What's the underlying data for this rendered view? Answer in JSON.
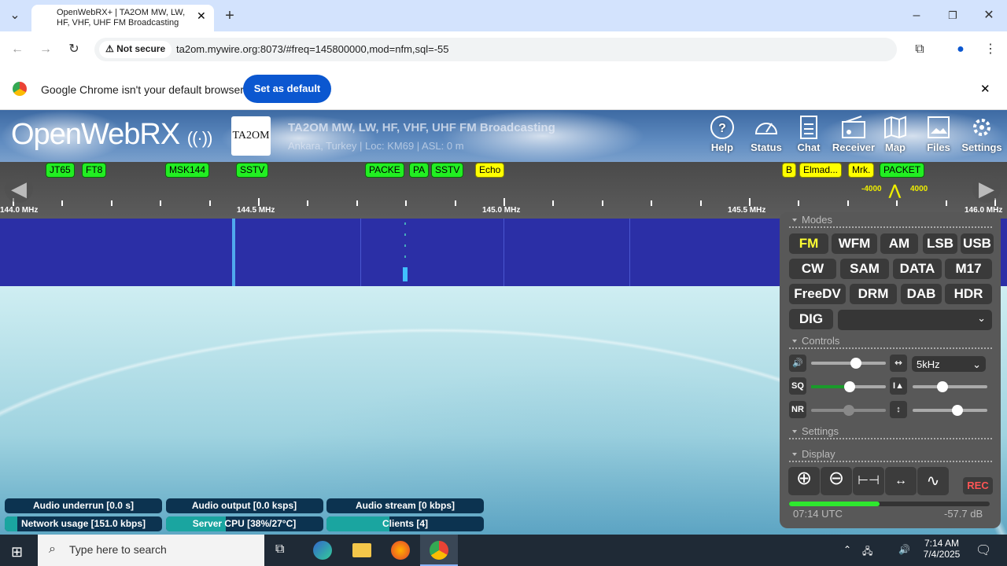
{
  "browser": {
    "tab_title": "OpenWebRX+ | TA2OM MW, LW, HF, VHF, UHF FM Broadcasting",
    "new_tab": "+",
    "not_secure": "Not secure",
    "url": "ta2om.mywire.org:8073/#freq=145800000,mod=nfm,sql=-55",
    "infobar_text": "Google Chrome isn't your default browser",
    "set_default": "Set as default"
  },
  "header": {
    "logo": "OpenWebRX",
    "receiver_logo": "TA2OM",
    "title": "TA2OM MW, LW, HF, VHF, UHF FM Broadcasting",
    "subtitle": "Ankara, Turkey | Loc: KM69 | ASL: 0 m",
    "nav": [
      {
        "label": "Help",
        "icon": "help-icon"
      },
      {
        "label": "Status",
        "icon": "gauge-icon"
      },
      {
        "label": "Chat",
        "icon": "chat-icon"
      },
      {
        "label": "Receiver",
        "icon": "radio-icon"
      },
      {
        "label": "Map",
        "icon": "map-icon"
      },
      {
        "label": "Files",
        "icon": "image-icon"
      },
      {
        "label": "Settings",
        "icon": "gear-icon"
      }
    ]
  },
  "bookmarks": [
    {
      "label": "JT65",
      "color": "green"
    },
    {
      "label": "FT8",
      "color": "green"
    },
    {
      "label": "MSK144",
      "color": "green"
    },
    {
      "label": "SSTV",
      "color": "green"
    },
    {
      "label": "PACKE",
      "color": "green"
    },
    {
      "label": "PA",
      "color": "green"
    },
    {
      "label": "SSTV",
      "color": "green"
    },
    {
      "label": "Echo",
      "color": "yellow"
    },
    {
      "label": "B",
      "color": "yellow"
    },
    {
      "label": "Elmad...",
      "color": "yellow"
    },
    {
      "label": "Mrk.",
      "color": "yellow"
    },
    {
      "label": "PACKET",
      "color": "green"
    }
  ],
  "scale": {
    "labels": [
      "144.0 MHz",
      "144.5 MHz",
      "145.0 MHz",
      "145.5 MHz",
      "146.0 MHz"
    ],
    "passband_low": "-4000",
    "passband_high": "4000"
  },
  "panel": {
    "modes_title": "Modes",
    "modes": [
      "FM",
      "WFM",
      "AM",
      "LSB",
      "USB",
      "CW",
      "SAM",
      "DATA",
      "M17",
      "FreeDV",
      "DRM",
      "DAB",
      "HDR",
      "DIG"
    ],
    "selected_mode": "FM",
    "digital_select": "",
    "controls_title": "Controls",
    "bandwidth": "5kHz",
    "sq_label": "SQ",
    "nr_label": "NR",
    "volume": 0.6,
    "squelch": 0.52,
    "nr": 0.5,
    "waterfall_min": 0.4,
    "waterfall_max": 0.6,
    "settings_title": "Settings",
    "display_title": "Display",
    "rec": "REC",
    "time": "07:14 UTC",
    "level": "-57.7 dB",
    "smeter": 0.45
  },
  "status": [
    {
      "label": "Audio underrun [0.0 s]",
      "fill": 0
    },
    {
      "label": "Audio output [0.0 ksps]",
      "fill": 0
    },
    {
      "label": "Audio stream [0 kbps]",
      "fill": 0
    },
    {
      "label": "Network usage [151.0 kbps]",
      "fill": 0.08
    },
    {
      "label": "Server CPU [38%/27°C]",
      "fill": 0.38
    },
    {
      "label": "Clients [4]",
      "fill": 0.4
    }
  ],
  "taskbar": {
    "search_placeholder": "Type here to search",
    "time": "7:14 AM",
    "date": "7/4/2025"
  },
  "colors": {
    "accent": "#0b57d0",
    "bookmark_green": "#22ee22",
    "bookmark_yellow": "#ffff00",
    "selected_mode": "#ffff33",
    "rec": "#ff5555"
  }
}
